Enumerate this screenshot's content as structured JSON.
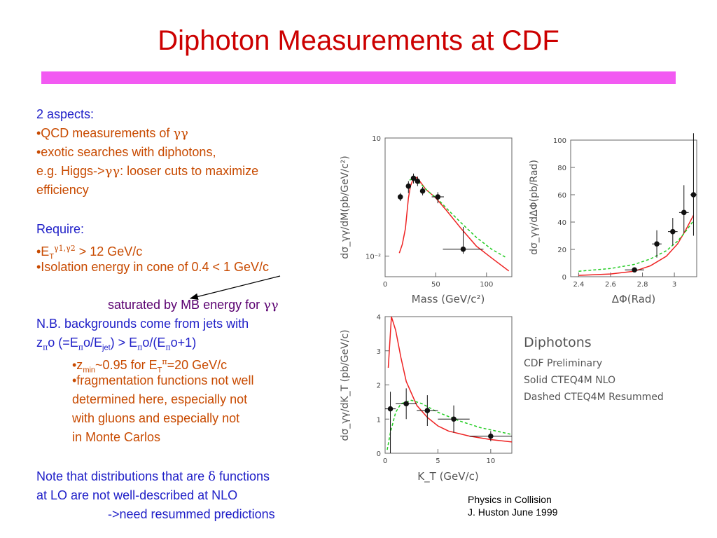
{
  "slide": {
    "title": "Diphoton Measurements at CDF",
    "colors": {
      "title": "#cc0000",
      "bar": "#f25af2",
      "blue_text": "#2020c8",
      "orange_text": "#c84a00",
      "purple_text": "#5a0070"
    }
  },
  "body": {
    "aspects_heading": "2 aspects:",
    "qcd_prefix": "•QCD measurements of ",
    "qcd_symbol": "γγ",
    "exotic": "•exotic searches with diphotons,",
    "higgs_prefix": "e.g. Higgs->",
    "higgs_symbol": "γγ",
    "higgs_suffix": ":  looser cuts to maximize",
    "efficiency": "efficiency",
    "require_heading": "Require:",
    "et_bullet": "•E",
    "et_sub": "T",
    "et_sup": "γ1,γ2",
    "et_rest": " > 12 GeV/c",
    "isolation": "•Isolation energy in cone of 0.4 < 1 GeV/c",
    "saturated_prefix": "saturated by MB  energy for ",
    "saturated_symbol": "γγ",
    "nb_line": "N.B. backgrounds come from jets with",
    "z_line": {
      "z": "z",
      "pi1": "π",
      "o1": "o (=E",
      "pi2": "π",
      "o2": "o/E",
      "jet": "jet",
      "mid": ") > E",
      "pi3": "π",
      "o3": "o/(E",
      "pi4": "π",
      "end": "o+1)"
    },
    "zmin_line": {
      "prefix": "•z",
      "sub": "min",
      "mid": "~0.95 for E",
      "sub2": "T",
      "sup2": "π",
      "end": "=20 GeV/c"
    },
    "frag_lines": [
      "•fragmentation functions not well",
      "determined here, especially not",
      "with gluons and especially not",
      "in Monte Carlos"
    ],
    "note_prefix": "Note that distributions that are ",
    "note_symbol": "δ",
    "note_suffix": " functions",
    "note_line2": "at LO are not well-described at NLO",
    "note_line3": "->need resummed predictions"
  },
  "legend": {
    "title": "Diphotons",
    "lines": [
      "CDF Preliminary",
      "Solid CTEQ4M NLO",
      "Dashed CTEQ4M Resummed"
    ]
  },
  "footer": {
    "line1": "Physics in Collision",
    "line2": "J. Huston    June 1999"
  },
  "chart_data": [
    {
      "type": "scatter",
      "title": "",
      "xlabel": "Mass (GeV/c²)",
      "ylabel": "dσ_γγ/dM(pb/GeV/c²)",
      "y_scale": "log",
      "xlim": [
        0,
        125
      ],
      "xticks": [
        "0",
        "50",
        "100"
      ],
      "yticks": [
        "10",
        "10⁻²"
      ],
      "points": [
        {
          "x": 15,
          "y": 0.32
        },
        {
          "x": 23,
          "y": 0.6
        },
        {
          "x": 28,
          "y": 0.95
        },
        {
          "x": 32,
          "y": 0.8
        },
        {
          "x": 37,
          "y": 0.45
        },
        {
          "x": 52,
          "y": 0.32
        },
        {
          "x": 77,
          "y": 0.015
        }
      ],
      "series": [
        {
          "style": "solid",
          "color": "#ee2222"
        },
        {
          "style": "dashed",
          "color": "#22cc22"
        }
      ]
    },
    {
      "type": "scatter",
      "title": "",
      "xlabel": "ΔΦ(Rad)",
      "ylabel": "dσ_γγ/dΔΦ(pb/Rad)",
      "xlim": [
        2.35,
        3.14
      ],
      "ylim": [
        0,
        100
      ],
      "xticks": [
        "2.4",
        "2.6",
        "2.8",
        "3"
      ],
      "yticks": [
        "0",
        "20",
        "40",
        "60",
        "80",
        "100"
      ],
      "points": [
        {
          "x": 2.75,
          "y": 5
        },
        {
          "x": 2.89,
          "y": 24
        },
        {
          "x": 2.99,
          "y": 33
        },
        {
          "x": 3.06,
          "y": 47
        },
        {
          "x": 3.12,
          "y": 60
        }
      ],
      "series": [
        {
          "style": "solid",
          "color": "#ee2222"
        },
        {
          "style": "dashed",
          "color": "#22cc22"
        }
      ]
    },
    {
      "type": "scatter",
      "title": "",
      "xlabel": "K_T (GeV/c)",
      "ylabel": "dσ_γγ/dK_T (pb/GeV/c)",
      "xlim": [
        0,
        12
      ],
      "ylim": [
        0,
        4
      ],
      "xticks": [
        "0",
        "5",
        "10"
      ],
      "yticks": [
        "0",
        "1",
        "2",
        "3",
        "4"
      ],
      "points": [
        {
          "x": 0.5,
          "y": 1.3
        },
        {
          "x": 2,
          "y": 1.45
        },
        {
          "x": 4,
          "y": 1.25
        },
        {
          "x": 6.5,
          "y": 1.0
        },
        {
          "x": 10,
          "y": 0.5
        }
      ],
      "series": [
        {
          "style": "solid",
          "color": "#ee2222"
        },
        {
          "style": "dashed",
          "color": "#22cc22"
        }
      ]
    }
  ]
}
